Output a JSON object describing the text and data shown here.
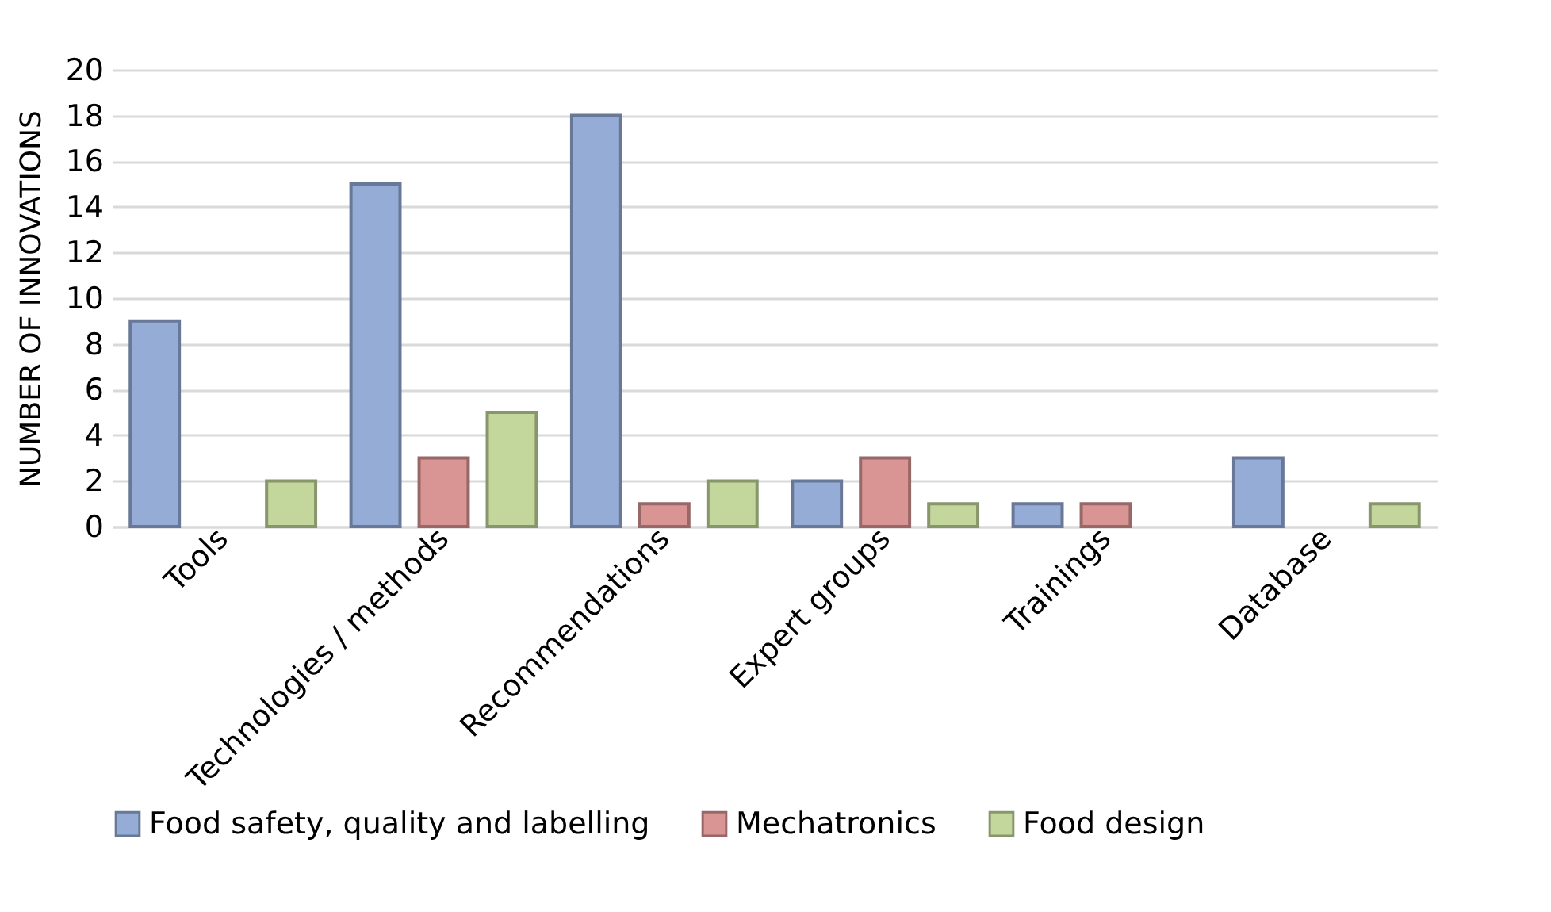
{
  "chart_data": {
    "type": "bar",
    "ylabel": "NUMBER OF INNOVATIONS",
    "categories": [
      "Tools",
      "Technologies / methods",
      "Recommendations",
      "Expert groups",
      "Trainings",
      "Database"
    ],
    "series": [
      {
        "name": "Food safety, quality and labelling",
        "color": "#95acd6",
        "values": [
          9,
          15,
          18,
          2,
          1,
          3
        ]
      },
      {
        "name": "Mechatronics",
        "color": "#d99594",
        "values": [
          0,
          3,
          1,
          3,
          1,
          0
        ]
      },
      {
        "name": "Food design",
        "color": "#c3d69b",
        "values": [
          2,
          5,
          2,
          1,
          0,
          1
        ]
      }
    ],
    "ylim": [
      0,
      20
    ],
    "yticks": [
      0,
      2,
      4,
      6,
      8,
      10,
      12,
      14,
      16,
      18,
      20
    ],
    "grid": "y",
    "legend": "bottom"
  }
}
